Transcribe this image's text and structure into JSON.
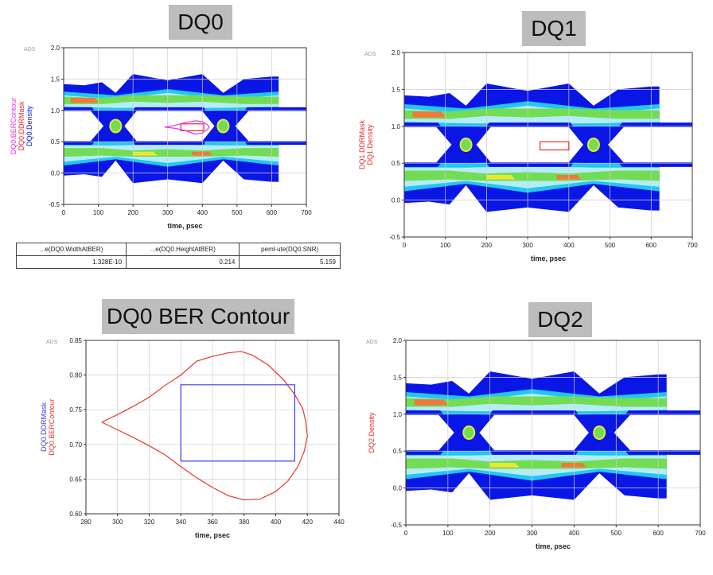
{
  "titles": {
    "dq0": "DQ0",
    "dq1": "DQ1",
    "contour": "DQ0 BER Contour",
    "dq2": "DQ2"
  },
  "results_table": {
    "headers": [
      "...e(DQ0.WidthAtBER)",
      "...e(DQ0.HeightAtBER)",
      "peml-ute(DQ0.SNR)"
    ],
    "values": [
      "1.328E-10",
      "0.214",
      "5.159"
    ]
  },
  "colors": {
    "blue": "#0a16e6",
    "cyan": "#23c6f0",
    "light_cyan": "#b4ecf8",
    "green": "#73dc55",
    "yellow": "#e8e832",
    "orange": "#f0783c",
    "mask_red": "#e8282d",
    "ber_magenta": "#e632e6",
    "contour_red": "#e8382d",
    "mask_blue": "#3c3cf0"
  },
  "chart_data": [
    {
      "id": "dq0",
      "type": "eye-density",
      "ads_label": "ADS",
      "xlabel": "time, psec",
      "xlim": [
        0,
        700
      ],
      "ylim": [
        -0.5,
        2.0
      ],
      "xticks": [
        "0",
        "100",
        "200",
        "300",
        "400",
        "500",
        "600",
        "700"
      ],
      "yticks": [
        "-0.5",
        "0.0",
        "0.5",
        "1.0",
        "1.5",
        "2.0"
      ],
      "ylabels": [
        {
          "text": "DQ0.BERContour",
          "color": "#e632e6"
        },
        {
          "text": "DQ0.DDRMask",
          "color": "#e8282d"
        },
        {
          "text": "DQ0.Density",
          "color": "#0a16e6"
        }
      ],
      "mask_rect": {
        "x0": 338,
        "x1": 404,
        "y0": 0.675,
        "y1": 0.785
      },
      "ber_contour": [
        [
          291,
          0.733
        ],
        [
          320,
          0.715
        ],
        [
          350,
          0.68
        ],
        [
          380,
          0.62
        ],
        [
          400,
          0.64
        ],
        [
          415,
          0.7
        ],
        [
          420,
          0.733
        ],
        [
          415,
          0.77
        ],
        [
          400,
          0.82
        ],
        [
          380,
          0.835
        ],
        [
          350,
          0.805
        ],
        [
          320,
          0.76
        ],
        [
          291,
          0.733
        ]
      ]
    },
    {
      "id": "dq1",
      "type": "eye-density",
      "ads_label": "ADS",
      "xlabel": "time, psec",
      "xlim": [
        0,
        700
      ],
      "ylim": [
        -0.5,
        2.0
      ],
      "xticks": [
        "0",
        "100",
        "200",
        "300",
        "400",
        "500",
        "600",
        "700"
      ],
      "yticks": [
        "-0.5",
        "0.0",
        "0.5",
        "1.0",
        "1.5",
        "2.0"
      ],
      "ylabels": [
        {
          "text": "DQ1.DDRMask",
          "color": "#e8282d"
        },
        {
          "text": "DQ1.Density",
          "color": "#e8282d"
        }
      ],
      "mask_rect": {
        "x0": 330,
        "x1": 400,
        "y0": 0.68,
        "y1": 0.79
      }
    },
    {
      "id": "contour",
      "type": "line",
      "ads_label": "ADS",
      "xlabel": "time, psec",
      "xlim": [
        280,
        440
      ],
      "ylim": [
        0.6,
        0.85
      ],
      "xticks": [
        "280",
        "300",
        "320",
        "340",
        "360",
        "380",
        "400",
        "420",
        "440"
      ],
      "yticks": [
        "0.60",
        "0.65",
        "0.70",
        "0.75",
        "0.80",
        "0.85"
      ],
      "ylabels": [
        {
          "text": "DQ0.DDRMask",
          "color": "#3c3cf0"
        },
        {
          "text": "DQ0.BERContour",
          "color": "#e8382d"
        }
      ],
      "series": [
        {
          "name": "DQ0.BERContour",
          "color": "#e8382d",
          "points": [
            [
              290,
              0.732
            ],
            [
              300,
              0.721
            ],
            [
              310,
              0.71
            ],
            [
              320,
              0.698
            ],
            [
              330,
              0.685
            ],
            [
              340,
              0.668
            ],
            [
              350,
              0.652
            ],
            [
              360,
              0.638
            ],
            [
              370,
              0.626
            ],
            [
              380,
              0.62
            ],
            [
              390,
              0.621
            ],
            [
              400,
              0.632
            ],
            [
              408,
              0.648
            ],
            [
              414,
              0.668
            ],
            [
              418,
              0.69
            ],
            [
              420,
              0.712
            ],
            [
              419,
              0.733
            ],
            [
              417,
              0.752
            ],
            [
              412,
              0.772
            ],
            [
              405,
              0.793
            ],
            [
              395,
              0.815
            ],
            [
              385,
              0.829
            ],
            [
              378,
              0.834
            ],
            [
              370,
              0.832
            ],
            [
              360,
              0.827
            ],
            [
              350,
              0.82
            ],
            [
              340,
              0.8
            ],
            [
              330,
              0.785
            ],
            [
              320,
              0.768
            ],
            [
              310,
              0.755
            ],
            [
              300,
              0.743
            ],
            [
              290,
              0.732
            ]
          ]
        },
        {
          "name": "DQ0.DDRMask",
          "color": "#3c3cf0",
          "points": [
            [
              340,
              0.676
            ],
            [
              412,
              0.676
            ],
            [
              412,
              0.786
            ],
            [
              340,
              0.786
            ],
            [
              340,
              0.676
            ]
          ]
        }
      ]
    },
    {
      "id": "dq2",
      "type": "eye-density",
      "ads_label": "ADS",
      "xlabel": "time, psec",
      "xlim": [
        0,
        700
      ],
      "ylim": [
        -0.5,
        2.0
      ],
      "xticks": [
        "0",
        "100",
        "200",
        "300",
        "400",
        "500",
        "600",
        "700"
      ],
      "yticks": [
        "-0.5",
        "0.0",
        "0.5",
        "1.0",
        "1.5",
        "2.0"
      ],
      "ylabels": [
        {
          "text": "DQ2.Density",
          "color": "#e8282d"
        }
      ],
      "xlabel_color": "#e8282d"
    }
  ]
}
